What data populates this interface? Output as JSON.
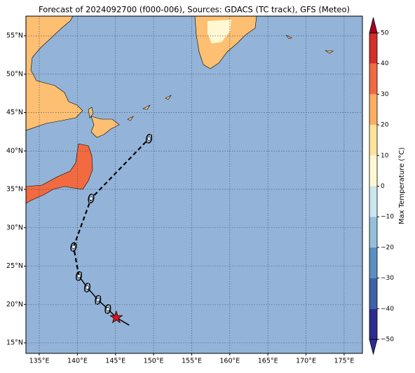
{
  "chart_data": {
    "type": "map",
    "title": "Forecast of 2024092700 (f000-006), Sources: GDACS (TC track), GFS (Meteo)",
    "xlim": [
      133.25,
      177.4
    ],
    "ylim": [
      13.63,
      57.56
    ],
    "xticks": [
      {
        "value": 135,
        "label": "135°E"
      },
      {
        "value": 140,
        "label": "140°E"
      },
      {
        "value": 145,
        "label": "145°E"
      },
      {
        "value": 150,
        "label": "150°E"
      },
      {
        "value": 155,
        "label": "155°E"
      },
      {
        "value": 160,
        "label": "160°E"
      },
      {
        "value": 165,
        "label": "165°E"
      },
      {
        "value": 170,
        "label": "170°E"
      },
      {
        "value": 175,
        "label": "175°E"
      }
    ],
    "yticks": [
      {
        "value": 15,
        "label": "15°N"
      },
      {
        "value": 20,
        "label": "20°N"
      },
      {
        "value": 25,
        "label": "25°N"
      },
      {
        "value": 30,
        "label": "30°N"
      },
      {
        "value": 35,
        "label": "35°N"
      },
      {
        "value": 40,
        "label": "40°N"
      },
      {
        "value": 45,
        "label": "45°N"
      },
      {
        "value": 50,
        "label": "50°N"
      },
      {
        "value": 55,
        "label": "55°N"
      }
    ],
    "grid": true,
    "track_past": {
      "lon": [
        146.8,
        145.1,
        144.0,
        142.7,
        141.3,
        140.2
      ],
      "lat": [
        17.3,
        18.3,
        19.4,
        20.6,
        22.2,
        23.7
      ],
      "color": "#000000"
    },
    "track_forecast": {
      "lon": [
        139.5,
        141.8,
        149.4
      ],
      "lat": [
        27.5,
        33.8,
        41.6
      ],
      "color": "#000000"
    },
    "colorbar": {
      "label": "Max Temperature (°C)",
      "ticks": [
        {
          "value": -50,
          "label": "−50"
        },
        {
          "value": -40,
          "label": "−40"
        },
        {
          "value": -30,
          "label": "−30"
        },
        {
          "value": -20,
          "label": "−20"
        },
        {
          "value": -10,
          "label": "−10"
        },
        0,
        10,
        20,
        30,
        40,
        50
      ],
      "colors": [
        "#2c2c91",
        "#3d62a9",
        "#5b8fc2",
        "#93bfdb",
        "#c9e7f0",
        "#fff8d2",
        "#fee39a",
        "#fdae61",
        "#f26a40",
        "#d43027",
        "#a50026"
      ]
    }
  }
}
